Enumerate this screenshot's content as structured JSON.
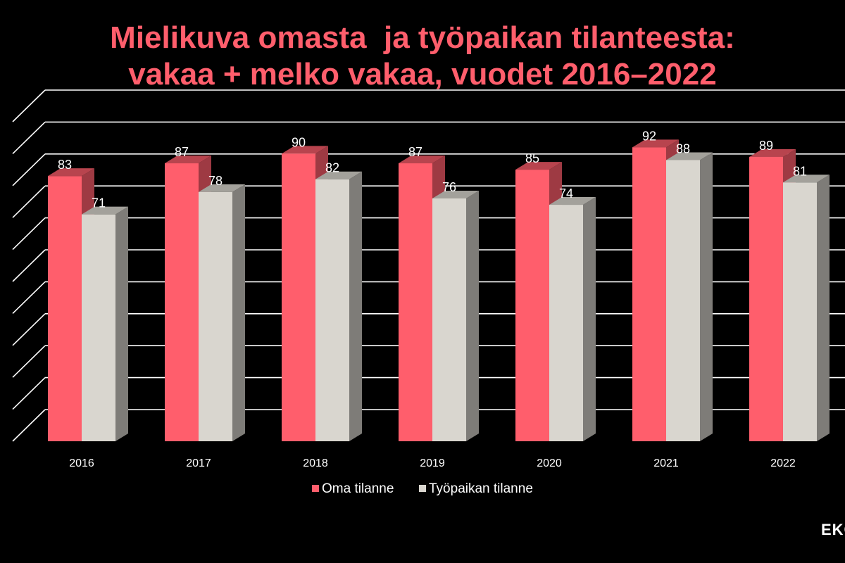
{
  "header": {
    "title_line1": "Mielikuva omasta  ja työpaikan tilanteesta:",
    "title_line2": "vakaa + melko vakaa, vuodet 2016–2022"
  },
  "logo": {
    "text": "EKO"
  },
  "chart_data": {
    "type": "bar",
    "categories": [
      "2016",
      "2017",
      "2018",
      "2019",
      "2020",
      "2021",
      "2022"
    ],
    "series": [
      {
        "name": "Oma tilanne",
        "values": [
          83,
          87,
          90,
          87,
          85,
          92,
          89
        ],
        "color": "#ff5e6c"
      },
      {
        "name": "Työpaikan tilanne",
        "values": [
          71,
          78,
          82,
          76,
          74,
          88,
          81
        ],
        "color": "#d9d6cf"
      }
    ],
    "ylim": [
      0,
      100
    ],
    "grid": true,
    "legend": "bottom",
    "data_labels": true
  }
}
